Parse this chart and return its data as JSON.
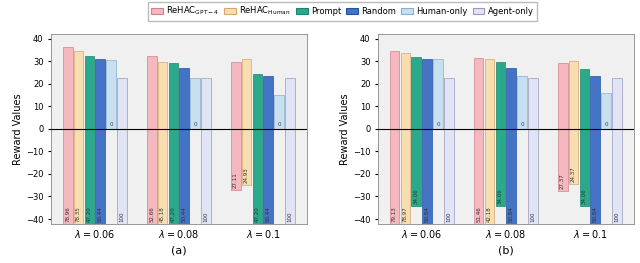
{
  "legend_labels": [
    "ReHAC$_{\\mathrm{GPT-4}}$",
    "ReHAC$_{\\mathrm{Human}}$",
    "Prompt",
    "Random",
    "Human-only",
    "Agent-only"
  ],
  "bar_colors": [
    "#f4b8be",
    "#f8ddb0",
    "#2aaa8a",
    "#4472c4",
    "#c8dff0",
    "#e0e4f4"
  ],
  "bar_edge_colors": [
    "#d08090",
    "#d4a870",
    "#1a8870",
    "#2255a0",
    "#88aed0",
    "#9898c0"
  ],
  "subplot_a": {
    "title": "(a)",
    "pos_bars": [
      [
        36.5,
        34.5,
        32.5,
        31.0,
        30.5,
        22.5
      ],
      [
        32.5,
        29.5,
        29.0,
        27.0,
        22.5,
        22.5
      ],
      [
        29.5,
        31.0,
        24.5,
        23.5,
        15.0,
        22.5
      ]
    ],
    "neg_bars": [
      [
        -78.96,
        -78.35,
        -47.2,
        -50.44,
        0,
        -100
      ],
      [
        -52.66,
        -45.18,
        -47.2,
        -50.44,
        0,
        -100
      ],
      [
        -27.11,
        -24.93,
        -47.2,
        -50.44,
        0,
        -100
      ]
    ],
    "neg_labels": [
      [
        "78.96",
        "78.35",
        "47.20",
        "50.44",
        "0",
        "100"
      ],
      [
        "52.66",
        "45.18",
        "47.20",
        "50.44",
        "0",
        "100"
      ],
      [
        "27.11",
        "24.93",
        "47.20",
        "50.44",
        "0",
        "100"
      ]
    ]
  },
  "subplot_b": {
    "title": "(b)",
    "pos_bars": [
      [
        34.5,
        33.5,
        32.0,
        31.0,
        31.0,
        22.5
      ],
      [
        31.5,
        31.0,
        29.5,
        27.0,
        23.5,
        22.5
      ],
      [
        29.0,
        30.0,
        26.5,
        23.5,
        16.0,
        22.5
      ]
    ],
    "neg_bars": [
      [
        -79.13,
        -78.97,
        -34.06,
        -50.84,
        0,
        -100
      ],
      [
        -51.46,
        -42.18,
        -34.06,
        -50.84,
        0,
        -100
      ],
      [
        -27.37,
        -24.37,
        -34.06,
        -50.84,
        0,
        -100
      ]
    ],
    "neg_labels": [
      [
        "79.13",
        "78.97",
        "34.06",
        "50.84",
        "0",
        "100"
      ],
      [
        "51.46",
        "42.18",
        "34.06",
        "50.84",
        "0",
        "100"
      ],
      [
        "27.37",
        "24.37",
        "34.06",
        "50.84",
        "0",
        "100"
      ]
    ]
  },
  "group_labels": [
    "$\\lambda=0.06$",
    "$\\lambda=0.08$",
    "$\\lambda=0.1$"
  ],
  "ylabel": "Reward Values",
  "ylim": [
    -42,
    42
  ],
  "yticks": [
    -40,
    -30,
    -20,
    -10,
    0,
    10,
    20,
    30,
    40
  ],
  "figsize": [
    6.4,
    2.63
  ],
  "dpi": 100
}
